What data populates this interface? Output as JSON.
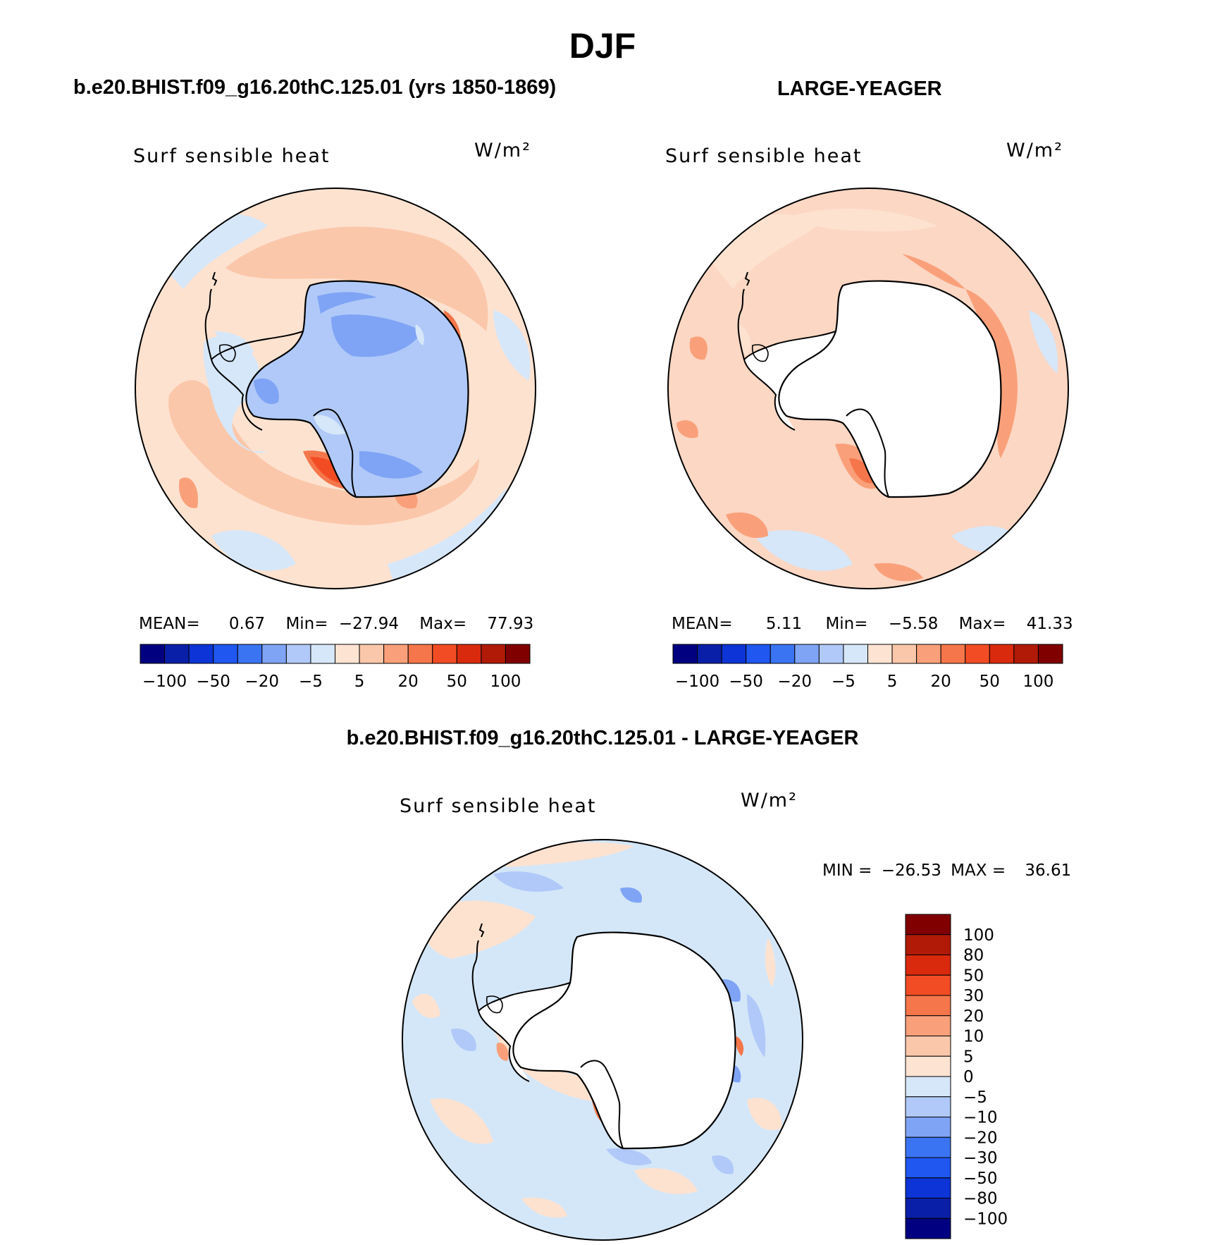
{
  "page": {
    "season": "DJF"
  },
  "colors": {
    "land_mask": "#ffffff",
    "coastline": "#000000",
    "bg_ref": "#fde2d0",
    "bg_model_top": "#fbd7c4",
    "bg_diff": "#d4e7f8"
  },
  "panels": {
    "model": {
      "header": "b.e20.BHIST.f09_g16.20thC.125.01 (yrs 1850-1869)",
      "variable": "Surf sensible heat",
      "units": "W/m²",
      "stats": {
        "mean_label": "MEAN=",
        "mean": "0.67",
        "min_label": "Min=",
        "min": "−27.94",
        "max_label": "Max=",
        "max": "77.93"
      }
    },
    "obs": {
      "header": "LARGE-YEAGER",
      "variable": "Surf sensible heat",
      "units": "W/m²",
      "stats": {
        "mean_label": "MEAN=",
        "mean": "5.11",
        "min_label": "Min=",
        "min": "−5.58",
        "max_label": "Max=",
        "max": "41.33"
      }
    },
    "diff": {
      "header": "b.e20.BHIST.f09_g16.20thC.125.01 - LARGE-YEAGER",
      "variable": "Surf sensible heat",
      "units": "W/m²",
      "stats": {
        "min_label": "MIN =",
        "min": "−26.53",
        "max_label": "MAX =",
        "max": "36.61"
      }
    }
  },
  "chart_data": [
    {
      "type": "heatmap",
      "title": "Surf sensible heat",
      "projection": "south polar stereographic",
      "units": "W/m²",
      "mean": 0.67,
      "min": -27.94,
      "max": 77.93,
      "colorbar": {
        "orientation": "horizontal",
        "levels": [
          -100,
          -75,
          -50,
          -30,
          -20,
          -10,
          -5,
          0,
          5,
          10,
          20,
          30,
          50,
          75,
          100
        ],
        "tick_labels": [
          "−100",
          "−50",
          "−20",
          "−5",
          "5",
          "20",
          "50",
          "100"
        ],
        "colors": [
          "#000080",
          "#0a1fa8",
          "#0c34d6",
          "#1f57f0",
          "#3b74f2",
          "#7fa4f5",
          "#b0c9f8",
          "#d6e7f9",
          "#fde3d2",
          "#fbc7aa",
          "#f9a07a",
          "#f5764a",
          "#f24c24",
          "#d92a0e",
          "#b01a06",
          "#800000"
        ]
      }
    },
    {
      "type": "heatmap",
      "title": "Surf sensible heat",
      "projection": "south polar stereographic",
      "units": "W/m²",
      "mean": 5.11,
      "min": -5.58,
      "max": 41.33,
      "colorbar": {
        "orientation": "horizontal",
        "levels": [
          -100,
          -75,
          -50,
          -30,
          -20,
          -10,
          -5,
          0,
          5,
          10,
          20,
          30,
          50,
          75,
          100
        ],
        "tick_labels": [
          "−100",
          "−50",
          "−20",
          "−5",
          "5",
          "20",
          "50",
          "100"
        ],
        "colors": [
          "#000080",
          "#0a1fa8",
          "#0c34d6",
          "#1f57f0",
          "#3b74f2",
          "#7fa4f5",
          "#b0c9f8",
          "#d6e7f9",
          "#fde3d2",
          "#fbc7aa",
          "#f9a07a",
          "#f5764a",
          "#f24c24",
          "#d92a0e",
          "#b01a06",
          "#800000"
        ]
      }
    },
    {
      "type": "heatmap",
      "title": "Surf sensible heat",
      "projection": "south polar stereographic",
      "units": "W/m²",
      "min": -26.53,
      "max": 36.61,
      "colorbar": {
        "orientation": "vertical",
        "tick_labels": [
          "100",
          "80",
          "50",
          "30",
          "20",
          "10",
          "5",
          "0",
          "−5",
          "−10",
          "−20",
          "−30",
          "−50",
          "−80",
          "−100"
        ],
        "colors": [
          "#800000",
          "#b01a06",
          "#d92a0e",
          "#f24c24",
          "#f5764a",
          "#f9a07a",
          "#fbc7aa",
          "#fde3d2",
          "#d6e7f9",
          "#b0c9f8",
          "#7fa4f5",
          "#3b74f2",
          "#1f57f0",
          "#0c34d6",
          "#0a1fa8",
          "#000080"
        ]
      }
    }
  ]
}
